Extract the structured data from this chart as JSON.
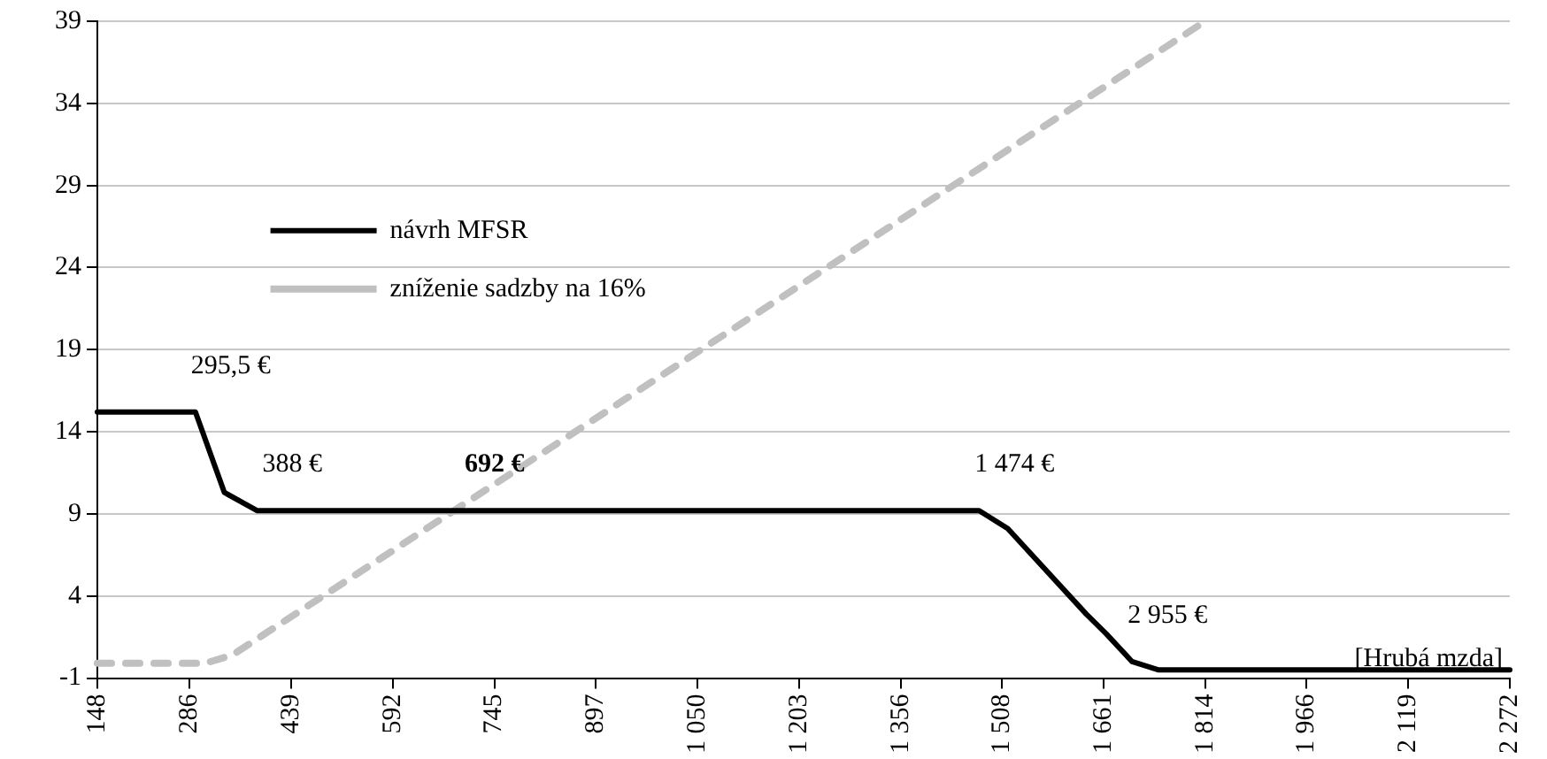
{
  "chart_data": {
    "type": "line",
    "xlabel": "[Hrubá mzda]",
    "xlim": [
      148,
      2272
    ],
    "xticks": [
      148,
      286,
      439,
      592,
      745,
      897,
      {
        "value": 1050,
        "label": "1 050"
      },
      {
        "value": 1203,
        "label": "1 203"
      },
      {
        "value": 1356,
        "label": "1 356"
      },
      {
        "value": 1508,
        "label": "1 508"
      },
      {
        "value": 1661,
        "label": "1 661"
      },
      {
        "value": 1814,
        "label": "1 814"
      },
      {
        "value": 1966,
        "label": "1 966"
      },
      {
        "value": 2119,
        "label": "2 119"
      },
      {
        "value": 2272,
        "label": "2 272"
      }
    ],
    "ylim": [
      -1,
      39
    ],
    "yticks": [
      -1,
      4,
      9,
      14,
      19,
      24,
      29,
      34,
      39
    ],
    "grid": "y",
    "legend": "top left",
    "series": [
      {
        "name": "návrh MFSR",
        "color": "#000000",
        "line_style": "solid",
        "x": [
          148,
          295.5,
          339,
          388,
          1474,
          1517,
          1635,
          1665,
          1704,
          1743,
          2272
        ],
        "values": [
          15.2,
          15.2,
          10.3,
          9.2,
          9.2,
          8.1,
          2.9,
          1.7,
          0,
          -0.5,
          -0.5
        ]
      },
      {
        "name": "zníženie sadzby na 16%",
        "color": "#c0c0c0",
        "line_style": "dashed",
        "x": [
          148,
          310,
          351,
          1814
        ],
        "values": [
          -0.1,
          -0.1,
          0.4,
          39
        ]
      }
    ],
    "annotations": [
      {
        "text": "295,5 €",
        "x": 295.5,
        "y": 15.2
      },
      {
        "text": "388 €",
        "x": 388,
        "y": 9.2
      },
      {
        "text": "**692 €**",
        "x": 692,
        "y": 9.2
      },
      {
        "text": "1 474 €",
        "x": 1474,
        "y": 9.2
      },
      {
        "text": "2 955 €",
        "x": 1704,
        "y": 0
      }
    ]
  }
}
